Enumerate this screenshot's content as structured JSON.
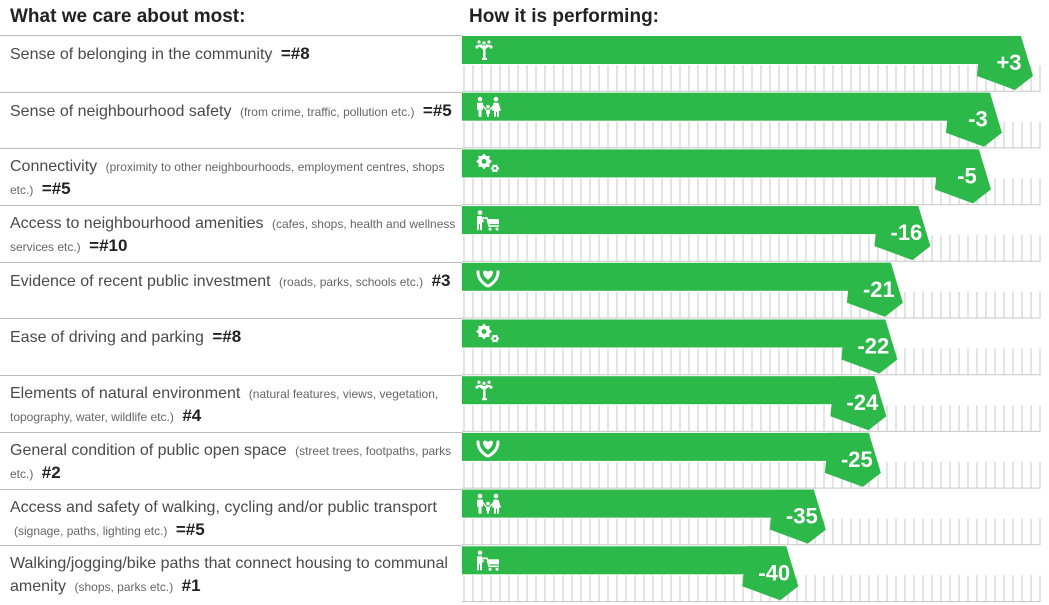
{
  "headers": {
    "left": "What we care about most:",
    "right": "How it is performing:"
  },
  "colors": {
    "bar": "#2db84a",
    "grid": "#c8c8c8",
    "label_text": "#ffffff",
    "icon": "#ffffff"
  },
  "items": [
    {
      "label": "Sense of belonging in the community",
      "note": "",
      "rank": "=#8",
      "icon": "tree-icon"
    },
    {
      "label": "Sense of neighbourhood safety",
      "note": "(from crime, traffic, pollution etc.)",
      "rank": "=#5",
      "icon": "family-icon"
    },
    {
      "label": "Connectivity",
      "note": "(proximity to other neighbourhoods, employment centres, shops etc.)",
      "rank": "=#5",
      "icon": "gears-icon"
    },
    {
      "label": "Access to neighbourhood amenities",
      "note": "(cafes, shops, health and wellness services etc.)",
      "rank": "=#10",
      "icon": "shopper-cart-icon"
    },
    {
      "label": "Evidence of recent public investment",
      "note": "(roads, parks, schools etc.)",
      "rank": "#3",
      "icon": "heart-hands-icon"
    },
    {
      "label": "Ease of driving and parking",
      "note": "",
      "rank": "=#8",
      "icon": "gears-icon"
    },
    {
      "label": "Elements of natural environment",
      "note": "(natural features, views, vegetation, topography, water, wildlife etc.)",
      "rank": "#4",
      "icon": "tree-icon"
    },
    {
      "label": "General condition of public open space",
      "note": "(street trees, footpaths, parks etc.)",
      "rank": "#2",
      "icon": "heart-hands-icon"
    },
    {
      "label": "Access and safety of walking, cycling and/or public transport",
      "note": "(signage, paths, lighting etc.)",
      "rank": "=#5",
      "icon": "family-icon"
    },
    {
      "label": "Walking/jogging/bike paths that connect housing to communal amenity",
      "note": "(shops, parks etc.)",
      "rank": "#1",
      "icon": "shopper-cart-icon"
    }
  ],
  "chart_data": {
    "type": "bar",
    "orientation": "horizontal",
    "categories": [
      "Sense of belonging in the community",
      "Sense of neighbourhood safety",
      "Connectivity",
      "Access to neighbourhood amenities",
      "Evidence of recent public investment",
      "Ease of driving and parking",
      "Elements of natural environment",
      "General condition of public open space",
      "Access and safety of walking, cycling and/or public transport",
      "Walking/jogging/bike paths that connect housing to communal amenity"
    ],
    "values": [
      3,
      -3,
      -5,
      -16,
      -21,
      -22,
      -24,
      -25,
      -35,
      -40
    ],
    "labels": [
      "+3",
      "-3",
      "-5",
      "-16",
      "-21",
      "-22",
      "-24",
      "-25",
      "-35",
      "-40"
    ],
    "xlim": [
      -100,
      5
    ],
    "grid": true,
    "title": "How it is performing:"
  }
}
